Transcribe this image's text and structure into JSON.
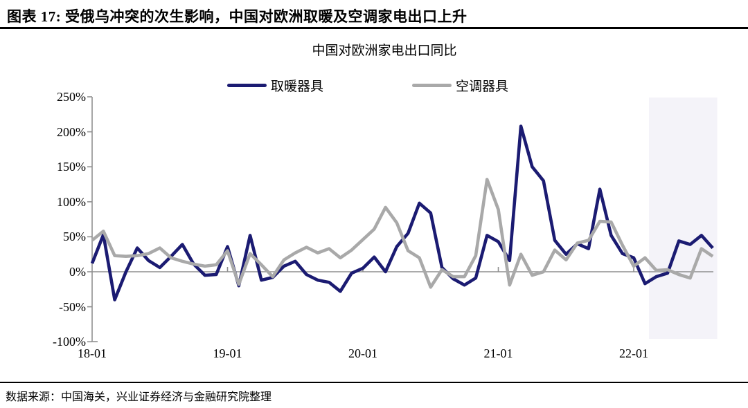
{
  "header": {
    "title": "图表 17: 受俄乌冲突的次生影响，中国对欧洲取暖及空调家电出口上升"
  },
  "chart": {
    "title": "中国对欧洲家电出口同比"
  },
  "footer": {
    "source": "数据来源：中国海关，兴业证券经济与金融研究院整理"
  },
  "colors": {
    "heater_line": "#1b1b72",
    "ac_line": "#a9a9a9",
    "axis": "#8f8f8f",
    "highlight_band": "#f4f3f9",
    "rule": "#000000"
  },
  "chart_data": {
    "type": "line",
    "title": "中国对欧洲家电出口同比",
    "xlabel": "",
    "ylabel": "",
    "ylim": [
      -100,
      250
    ],
    "grid": false,
    "legend_position": "top",
    "categories": [
      "18-01",
      "18-02",
      "18-03",
      "18-04",
      "18-05",
      "18-06",
      "18-07",
      "18-08",
      "18-09",
      "18-10",
      "18-11",
      "18-12",
      "19-01",
      "19-02",
      "19-03",
      "19-04",
      "19-05",
      "19-06",
      "19-07",
      "19-08",
      "19-09",
      "19-10",
      "19-11",
      "19-12",
      "20-01",
      "20-02",
      "20-03",
      "20-04",
      "20-05",
      "20-06",
      "20-07",
      "20-08",
      "20-09",
      "20-10",
      "20-11",
      "20-12",
      "21-01",
      "21-02",
      "21-03",
      "21-04",
      "21-05",
      "21-06",
      "21-07",
      "21-08",
      "21-09",
      "21-10",
      "21-11",
      "21-12",
      "22-01",
      "22-02",
      "22-03",
      "22-04",
      "22-05",
      "22-06",
      "22-07",
      "22-08"
    ],
    "series": [
      {
        "id": "heater",
        "name": "取暖器具",
        "color": "#1b1b72",
        "values": [
          12,
          53,
          -40,
          0,
          34,
          16,
          6,
          22,
          39,
          11,
          -5,
          -4,
          36,
          -20,
          52,
          -12,
          -8,
          8,
          15,
          -4,
          -12,
          -15,
          -28,
          -2,
          5,
          21,
          0,
          36,
          55,
          98,
          84,
          6,
          -10,
          -19,
          -9,
          52,
          43,
          16,
          208,
          150,
          130,
          45,
          25,
          40,
          33,
          118,
          52,
          26,
          20,
          -17,
          -7,
          -2,
          44,
          39,
          52,
          34
        ]
      },
      {
        "id": "ac",
        "name": "空调器具",
        "color": "#a9a9a9",
        "values": [
          45,
          58,
          23,
          22,
          23,
          26,
          34,
          20,
          15,
          11,
          8,
          10,
          30,
          -18,
          26,
          10,
          -7,
          17,
          27,
          35,
          27,
          33,
          20,
          31,
          46,
          61,
          92,
          70,
          30,
          20,
          -22,
          3,
          -7,
          -7,
          23,
          132,
          89,
          -19,
          25,
          -5,
          0,
          31,
          17,
          41,
          45,
          72,
          71,
          38,
          8,
          20,
          2,
          3,
          -4,
          -9,
          33,
          22
        ]
      }
    ],
    "y_ticks": [
      {
        "label": "250%",
        "value": 250
      },
      {
        "label": "200%",
        "value": 200
      },
      {
        "label": "150%",
        "value": 150
      },
      {
        "label": "100%",
        "value": 100
      },
      {
        "label": "50%",
        "value": 50
      },
      {
        "label": "0%",
        "value": 0
      },
      {
        "label": "-50%",
        "value": -50
      },
      {
        "label": "-100%",
        "value": -100
      }
    ],
    "x_ticks": [
      {
        "label": "18-01",
        "index": 0
      },
      {
        "label": "19-01",
        "index": 12
      },
      {
        "label": "20-01",
        "index": 24
      },
      {
        "label": "21-01",
        "index": 36
      },
      {
        "label": "22-01",
        "index": 48
      }
    ],
    "highlight_region": {
      "from_index": 49.35,
      "to_index": 55.4,
      "color": "#f4f3f9"
    }
  }
}
